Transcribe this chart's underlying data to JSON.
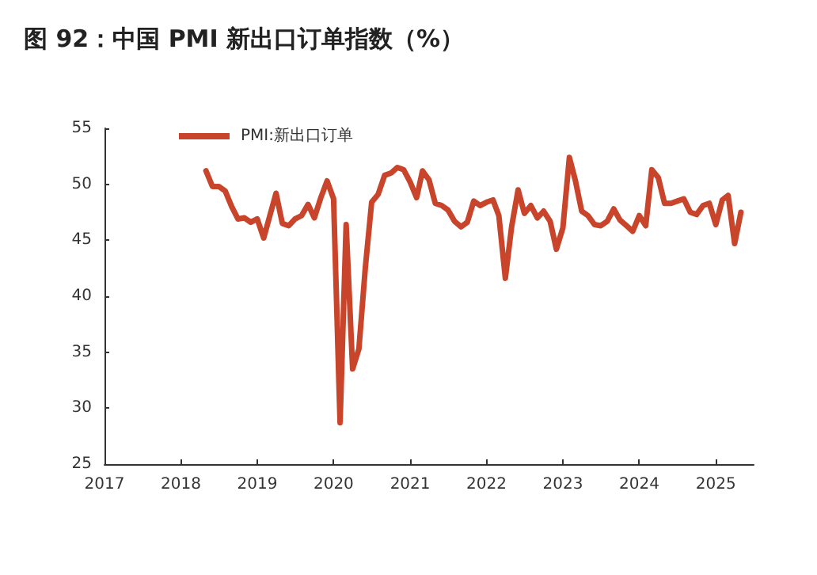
{
  "chart_data": {
    "type": "line",
    "title": "图 92：中国 PMI 新出口订单指数（%）",
    "x": [
      "2018-05",
      "2018-06",
      "2018-07",
      "2018-08",
      "2018-09",
      "2018-10",
      "2018-11",
      "2018-12",
      "2019-01",
      "2019-02",
      "2019-03",
      "2019-04",
      "2019-05",
      "2019-06",
      "2019-07",
      "2019-08",
      "2019-09",
      "2019-10",
      "2019-11",
      "2019-12",
      "2020-01",
      "2020-02",
      "2020-03",
      "2020-04",
      "2020-05",
      "2020-06",
      "2020-07",
      "2020-08",
      "2020-09",
      "2020-10",
      "2020-11",
      "2020-12",
      "2021-01",
      "2021-02",
      "2021-03",
      "2021-04",
      "2021-05",
      "2021-06",
      "2021-07",
      "2021-08",
      "2021-09",
      "2021-10",
      "2021-11",
      "2021-12",
      "2022-01",
      "2022-02",
      "2022-03",
      "2022-04",
      "2022-05",
      "2022-06",
      "2022-07",
      "2022-08",
      "2022-09",
      "2022-10",
      "2022-11",
      "2022-12",
      "2023-01",
      "2023-02",
      "2023-03",
      "2023-04",
      "2023-05",
      "2023-06",
      "2023-07",
      "2023-08",
      "2023-09",
      "2023-10",
      "2023-11",
      "2023-12",
      "2024-01",
      "2024-02",
      "2024-03",
      "2024-04",
      "2024-05",
      "2024-06",
      "2024-07",
      "2024-08",
      "2024-09",
      "2024-10",
      "2024-11",
      "2024-12",
      "2025-01",
      "2025-02",
      "2025-03",
      "2025-04",
      "2025-05"
    ],
    "series": [
      {
        "name": "PMI:新出口订单",
        "color": "#c8442a",
        "values": [
          51.2,
          49.8,
          49.8,
          49.4,
          48.0,
          46.9,
          47.0,
          46.6,
          46.9,
          45.2,
          47.1,
          49.2,
          46.5,
          46.3,
          46.9,
          47.2,
          48.2,
          47.0,
          48.8,
          50.3,
          48.7,
          28.7,
          46.4,
          33.5,
          35.3,
          42.6,
          48.4,
          49.1,
          50.8,
          51.0,
          51.5,
          51.3,
          50.2,
          48.8,
          51.2,
          50.4,
          48.3,
          48.1,
          47.7,
          46.7,
          46.2,
          46.6,
          48.5,
          48.1,
          48.4,
          48.6,
          47.2,
          41.6,
          46.2,
          49.5,
          47.4,
          48.1,
          47.0,
          47.6,
          46.7,
          44.2,
          46.1,
          52.4,
          50.4,
          47.6,
          47.2,
          46.4,
          46.3,
          46.7,
          47.8,
          46.8,
          46.3,
          45.8,
          47.2,
          46.3,
          51.3,
          50.6,
          48.3,
          48.3,
          48.5,
          48.7,
          47.5,
          47.3,
          48.1,
          48.3,
          46.4,
          48.6,
          49.0,
          44.7,
          47.5
        ]
      }
    ],
    "xlim": [
      "2017-01",
      "2025-07"
    ],
    "xticks": [
      {
        "value": "2017",
        "label": "2017"
      },
      {
        "value": "2018",
        "label": "2018"
      },
      {
        "value": "2019",
        "label": "2019"
      },
      {
        "value": "2020",
        "label": "2020"
      },
      {
        "value": "2021",
        "label": "2021"
      },
      {
        "value": "2022",
        "label": "2022"
      },
      {
        "value": "2023",
        "label": "2023"
      },
      {
        "value": "2024",
        "label": "2024"
      },
      {
        "value": "2025",
        "label": "2025"
      }
    ],
    "ylim": [
      25,
      55
    ],
    "yticks": [
      25,
      30,
      35,
      40,
      45,
      50,
      55
    ],
    "grid": false,
    "legend": "top left",
    "marker": "none",
    "line_style": "solid"
  }
}
